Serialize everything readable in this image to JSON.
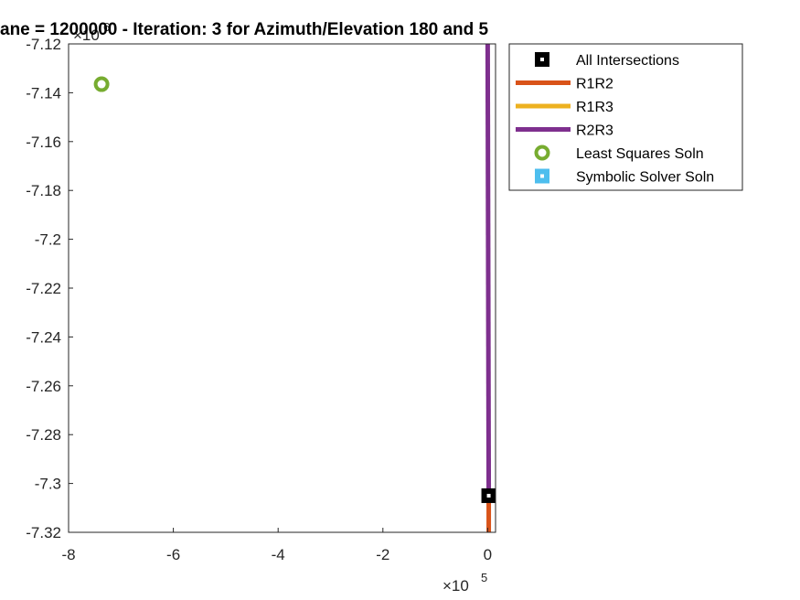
{
  "chart_data": {
    "type": "line",
    "title": "ane = 1200000 - Iteration: 3 for Azimuth/Elevation 180 and 5",
    "xlabel": "",
    "ylabel": "",
    "xlim": [
      -8,
      0.15
    ],
    "ylim": [
      -7.32,
      -7.12
    ],
    "x_multiplier_label": "×10",
    "x_multiplier_exponent": "5",
    "y_multiplier_label": "×10",
    "y_multiplier_exponent": "6",
    "x_ticks": [
      -8,
      -6,
      -4,
      -2,
      0
    ],
    "x_tick_labels": [
      "-8",
      "-6",
      "-4",
      "-2",
      "0"
    ],
    "y_ticks": [
      -7.12,
      -7.14,
      -7.16,
      -7.18,
      -7.2,
      -7.22,
      -7.24,
      -7.26,
      -7.28,
      -7.3,
      -7.32
    ],
    "y_tick_labels": [
      "-7.12",
      "-7.14",
      "-7.16",
      "-7.18",
      "-7.2",
      "-7.22",
      "-7.24",
      "-7.26",
      "-7.28",
      "-7.3",
      "-7.32"
    ],
    "grid": false,
    "legend_placement": "outside-top-right",
    "series": [
      {
        "name": "All Intersections",
        "kind": "marker",
        "marker": "square",
        "color": "#000000",
        "x": [
          0.02
        ],
        "y": [
          -7.305
        ]
      },
      {
        "name": "R1R2",
        "kind": "line",
        "color": "#D95319",
        "x": [
          0.02,
          0.02
        ],
        "y": [
          -7.305,
          -7.32
        ]
      },
      {
        "name": "R1R3",
        "kind": "line",
        "color": "#EDB120",
        "x": [],
        "y": []
      },
      {
        "name": "R2R3",
        "kind": "line",
        "color": "#7E2F8E",
        "x": [
          0.0,
          0.02
        ],
        "y": [
          -7.12,
          -7.305
        ]
      },
      {
        "name": "Least Squares Soln",
        "kind": "marker",
        "marker": "circle",
        "color": "#77AC30",
        "x": [
          -7.37
        ],
        "y": [
          -7.1365
        ]
      },
      {
        "name": "Symbolic Solver Soln",
        "kind": "marker",
        "marker": "square",
        "color": "#4DBEEE",
        "x": [],
        "y": []
      }
    ]
  }
}
